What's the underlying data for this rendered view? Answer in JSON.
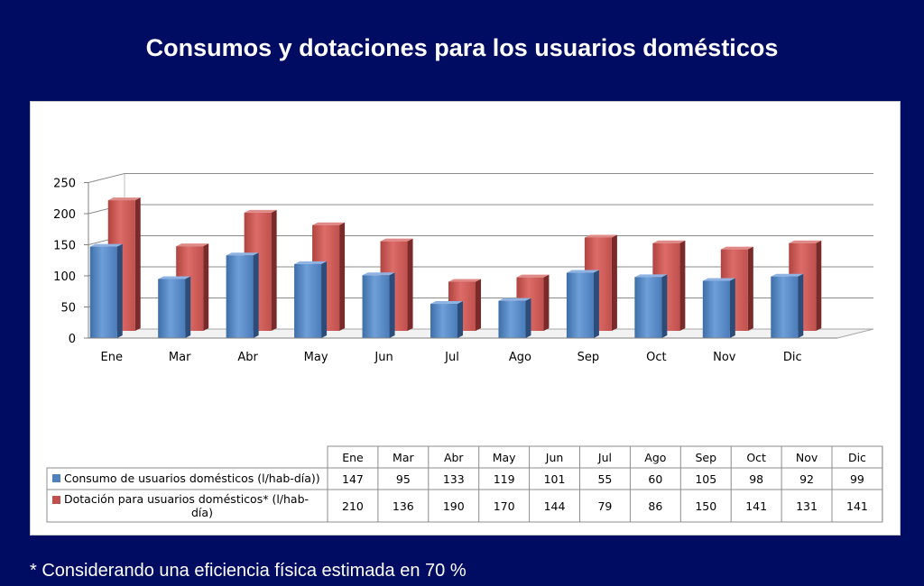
{
  "title": "Consumos y dotaciones para los usuarios domésticos",
  "footnote": "* Considerando una eficiencia física estimada en 70 %",
  "chart_data": {
    "type": "bar",
    "categories": [
      "Ene",
      "Mar",
      "Abr",
      "May",
      "Jun",
      "Jul",
      "Ago",
      "Sep",
      "Oct",
      "Nov",
      "Dic"
    ],
    "series": [
      {
        "name": "Consumo de usuarios domésticos (l/hab-día))",
        "values": [
          147,
          95,
          133,
          119,
          101,
          55,
          60,
          105,
          98,
          92,
          99
        ],
        "color": "#4f81bd"
      },
      {
        "name": "Dotación para usuarios domésticos* (l/hab-día)",
        "values": [
          210,
          136,
          190,
          170,
          144,
          79,
          86,
          150,
          141,
          131,
          141
        ],
        "color": "#c0504d"
      }
    ],
    "yticks": [
      0,
      50,
      100,
      150,
      200,
      250
    ],
    "ylim": [
      0,
      250
    ],
    "grid": true,
    "data_table": true
  }
}
